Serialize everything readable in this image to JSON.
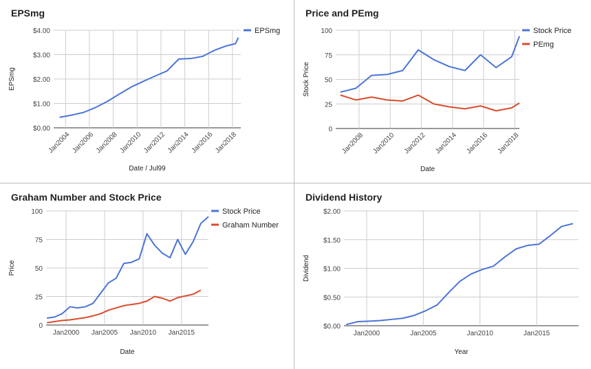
{
  "colors": {
    "blue": "#4a74d7",
    "red": "#db4a2b",
    "grid": "#cccccc",
    "axis": "#333333"
  },
  "chart_data": [
    {
      "id": "eps",
      "type": "line",
      "title": "EPSmg",
      "xlabel": "Date / Jul99",
      "ylabel": "EPSmg",
      "x_ticks": [
        "Jan2004",
        "Jan2006",
        "Jan2008",
        "Jan2010",
        "Jan2012",
        "Jan2014",
        "Jan2016",
        "Jan2018"
      ],
      "y_ticks": [
        "$0.00",
        "$1.00",
        "$2.00",
        "$3.00",
        "$4.00"
      ],
      "ylim": [
        0,
        4
      ],
      "legend_position": "top-right",
      "series": [
        {
          "name": "EPSmg",
          "color": "blue",
          "x": [
            2003.5,
            2004.5,
            2005.5,
            2006.5,
            2007.5,
            2008.5,
            2009.5,
            2010.5,
            2011.5,
            2012.5,
            2013.5,
            2014.5,
            2015.5,
            2016.5,
            2017.5,
            2018.25
          ],
          "y": [
            0.43,
            0.52,
            0.63,
            0.83,
            1.08,
            1.38,
            1.67,
            1.9,
            2.12,
            2.33,
            2.82,
            2.84,
            2.93,
            3.18,
            3.36,
            3.45
          ]
        }
      ],
      "final_point": {
        "x": 2018.5,
        "y": 3.7
      }
    },
    {
      "id": "pe",
      "type": "line",
      "title": "Price and PEmg",
      "xlabel": "Date",
      "ylabel": "Stock Price",
      "x_ticks": [
        "Jan2008",
        "Jan2010",
        "Jan2012",
        "Jan2014",
        "Jan2016",
        "Jan2018"
      ],
      "y_ticks": [
        "0",
        "25",
        "50",
        "75",
        "100"
      ],
      "ylim": [
        0,
        100
      ],
      "legend_position": "top-right",
      "series": [
        {
          "name": "Stock Price",
          "color": "blue",
          "x": [
            2006.8,
            2007.8,
            2008.8,
            2009.8,
            2010.8,
            2011.8,
            2012.8,
            2013.8,
            2014.8,
            2015.8,
            2016.8,
            2017.8,
            2018.3
          ],
          "y": [
            37,
            41,
            54,
            55,
            59,
            80,
            70,
            63,
            59,
            75,
            62,
            73,
            94
          ]
        },
        {
          "name": "PEmg",
          "color": "red",
          "x": [
            2006.8,
            2007.8,
            2008.8,
            2009.8,
            2010.8,
            2011.8,
            2012.8,
            2013.8,
            2014.8,
            2015.8,
            2016.8,
            2017.8,
            2018.3
          ],
          "y": [
            34,
            29,
            32,
            29,
            28,
            34,
            25,
            22,
            20,
            23,
            18,
            21,
            26
          ]
        }
      ]
    },
    {
      "id": "graham",
      "type": "line",
      "title": "Graham Number and Stock Price",
      "xlabel": "Date",
      "ylabel": "Price",
      "x_ticks": [
        "Jan2000",
        "Jan2005",
        "Jan2010",
        "Jan2015"
      ],
      "y_ticks": [
        "0",
        "25",
        "50",
        "75",
        "100"
      ],
      "ylim": [
        0,
        100
      ],
      "legend_position": "top-right",
      "series": [
        {
          "name": "Stock Price",
          "color": "blue",
          "x": [
            1997.5,
            1998.5,
            1999.5,
            2000.5,
            2001.5,
            2002.5,
            2003.5,
            2004.5,
            2005.5,
            2006.5,
            2007.5,
            2008.5,
            2009.5,
            2010.5,
            2011.5,
            2012.5,
            2013.5,
            2014.5,
            2015.5,
            2016.5,
            2017.5,
            2018.5
          ],
          "y": [
            6,
            7,
            10,
            16,
            15,
            16,
            19,
            28,
            37,
            41,
            54,
            55,
            58,
            80,
            70,
            63,
            59,
            75,
            62,
            73,
            89,
            95
          ]
        },
        {
          "name": "Graham Number",
          "color": "red",
          "x": [
            1997.5,
            1998.5,
            1999.5,
            2000.5,
            2001.5,
            2002.5,
            2003.5,
            2004.5,
            2005.5,
            2006.5,
            2007.5,
            2008.5,
            2009.5,
            2010.5,
            2011.5,
            2012.5,
            2013.5,
            2014.5,
            2015.5,
            2016.5,
            2017.5
          ],
          "y": [
            2,
            3,
            4,
            4.5,
            5.5,
            6.5,
            8,
            10,
            13,
            15,
            17,
            18,
            19,
            21,
            25,
            23.5,
            21,
            24,
            25.5,
            27,
            30.5
          ]
        }
      ]
    },
    {
      "id": "dividend",
      "type": "line",
      "title": "Dividend History",
      "xlabel": "Year",
      "ylabel": "Dividend",
      "x_ticks": [
        "Jan2000",
        "Jan2005",
        "Jan2010",
        "Jan2015"
      ],
      "y_ticks": [
        "$0.00",
        "$0.50",
        "$1.00",
        "$1.50",
        "$2.00"
      ],
      "ylim": [
        0,
        2
      ],
      "series": [
        {
          "name": "Dividend",
          "color": "blue",
          "x": [
            1998.2,
            1999.2,
            2000.2,
            2001.2,
            2002.2,
            2003.2,
            2004.2,
            2005.2,
            2006.2,
            2007.2,
            2008.2,
            2009.2,
            2010.2,
            2011.2,
            2012.2,
            2013.2,
            2014.2,
            2015.2,
            2016.2,
            2017.2,
            2018.2
          ],
          "y": [
            0.02,
            0.07,
            0.08,
            0.09,
            0.11,
            0.13,
            0.18,
            0.26,
            0.36,
            0.57,
            0.77,
            0.9,
            0.98,
            1.04,
            1.2,
            1.34,
            1.4,
            1.42,
            1.57,
            1.73,
            1.78
          ]
        }
      ]
    }
  ]
}
